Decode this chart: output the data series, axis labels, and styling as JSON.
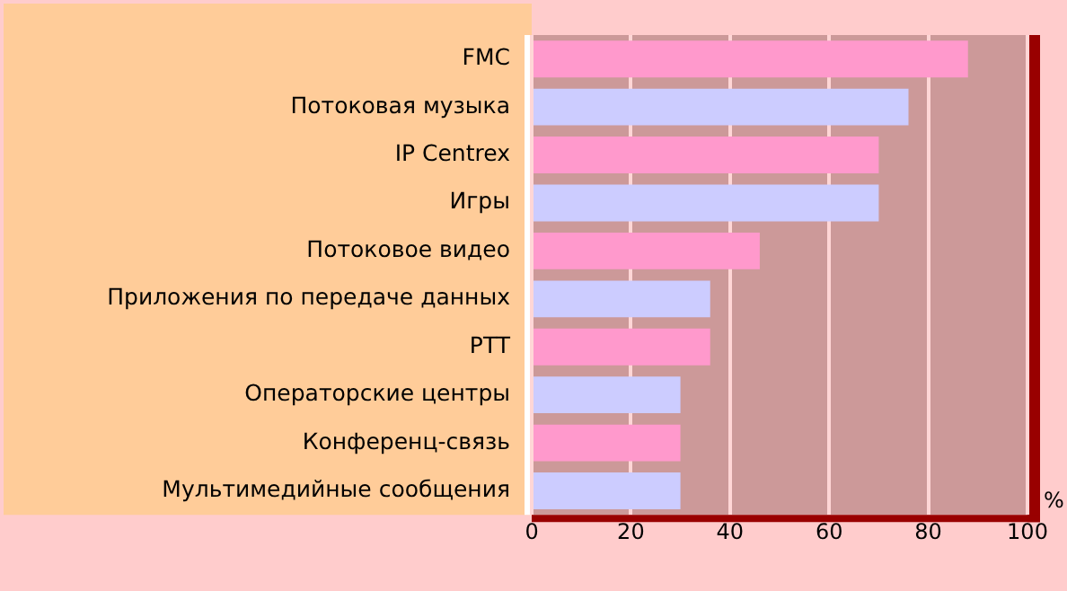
{
  "chart_data": {
    "type": "bar",
    "orientation": "horizontal",
    "xlabel": "%",
    "categories": [
      "FMC",
      "Потоковая музыка",
      "IP Centrex",
      "Игры",
      "Потоковое видео",
      "Приложения по передаче данных",
      "PTT",
      "Операторские центры",
      "Конференц-связь",
      "Мультимедийные сообщения"
    ],
    "values": [
      88,
      76,
      70,
      70,
      46,
      36,
      36,
      30,
      30,
      30
    ],
    "colors": [
      "#ff99cc",
      "#ccccff",
      "#ff99cc",
      "#ccccff",
      "#ff99cc",
      "#ccccff",
      "#ff99cc",
      "#ccccff",
      "#ff99cc",
      "#ccccff"
    ],
    "xlim": [
      0,
      100
    ],
    "xticks": [
      0,
      20,
      40,
      60,
      80,
      100
    ],
    "grid": "x"
  }
}
